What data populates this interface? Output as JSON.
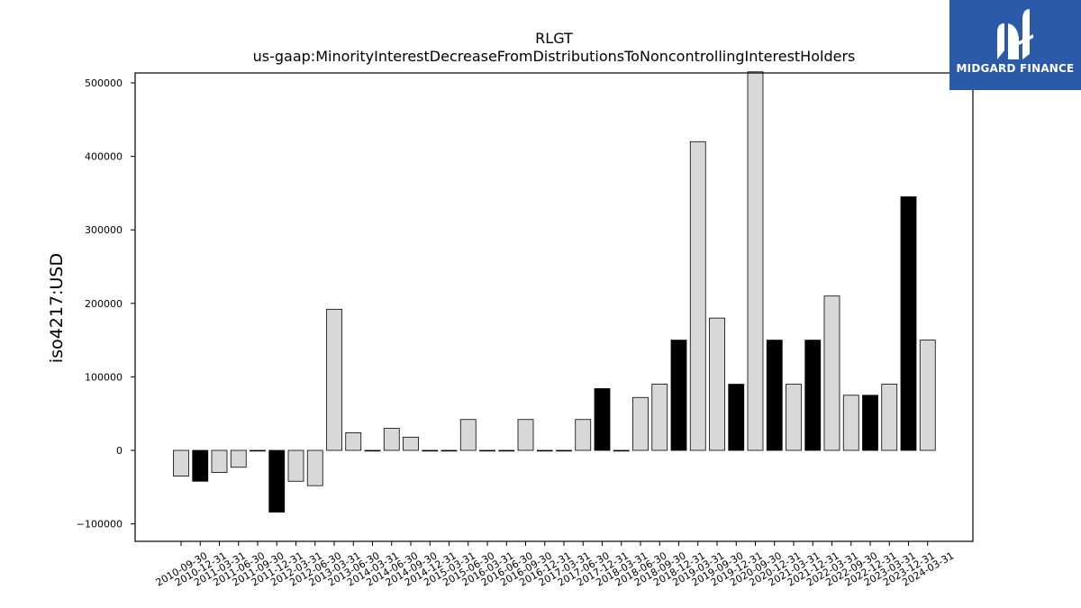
{
  "brand": {
    "name": "MIDGARD FINANCE",
    "logo_color": "#2b5aa8"
  },
  "chart_data": {
    "type": "bar",
    "title": "RLGT",
    "subtitle": "us-gaap:MinorityInterestDecreaseFromDistributionsToNoncontrollingInterestHolders",
    "xlabel": "",
    "ylabel": "iso4217:USD",
    "ylim": [
      -122000,
      515000
    ],
    "yticks": [
      -100000,
      0,
      100000,
      200000,
      300000,
      400000,
      500000
    ],
    "ytick_labels": [
      "−100000",
      "0",
      "100000",
      "200000",
      "300000",
      "400000",
      "500000"
    ],
    "grid": false,
    "colors": {
      "light": "#d8d8d8",
      "dark": "#000000",
      "edge": "#000000"
    },
    "categories": [
      "2010-09-30",
      "2010-12-31",
      "2011-03-31",
      "2011-06-30",
      "2011-09-30",
      "2011-12-31",
      "2012-03-31",
      "2012-06-30",
      "2013-03-31",
      "2013-06-30",
      "2014-03-31",
      "2014-06-30",
      "2014-09-30",
      "2014-12-31",
      "2015-03-31",
      "2015-06-30",
      "2016-03-31",
      "2016-06-30",
      "2016-09-30",
      "2016-12-31",
      "2017-03-31",
      "2017-06-30",
      "2017-12-31",
      "2018-03-31",
      "2018-06-30",
      "2018-09-30",
      "2018-12-31",
      "2019-03-31",
      "2019-09-30",
      "2019-12-31",
      "2020-09-30",
      "2020-12-31",
      "2021-03-31",
      "2021-12-31",
      "2022-03-31",
      "2022-09-30",
      "2022-12-31",
      "2023-03-31",
      "2023-12-31",
      "2024-03-31"
    ],
    "values": [
      -35000,
      -42000,
      -30000,
      -23000,
      0,
      -84000,
      -42000,
      -48000,
      192000,
      24000,
      0,
      30000,
      18000,
      0,
      0,
      42000,
      0,
      0,
      42000,
      0,
      0,
      42000,
      84000,
      0,
      72000,
      90000,
      150000,
      420000,
      180000,
      90000,
      515000,
      150000,
      90000,
      150000,
      210000,
      75000,
      75000,
      90000,
      345000,
      150000
    ],
    "dark_bars": [
      1,
      5,
      22,
      26,
      29,
      31,
      33,
      36,
      38
    ]
  }
}
